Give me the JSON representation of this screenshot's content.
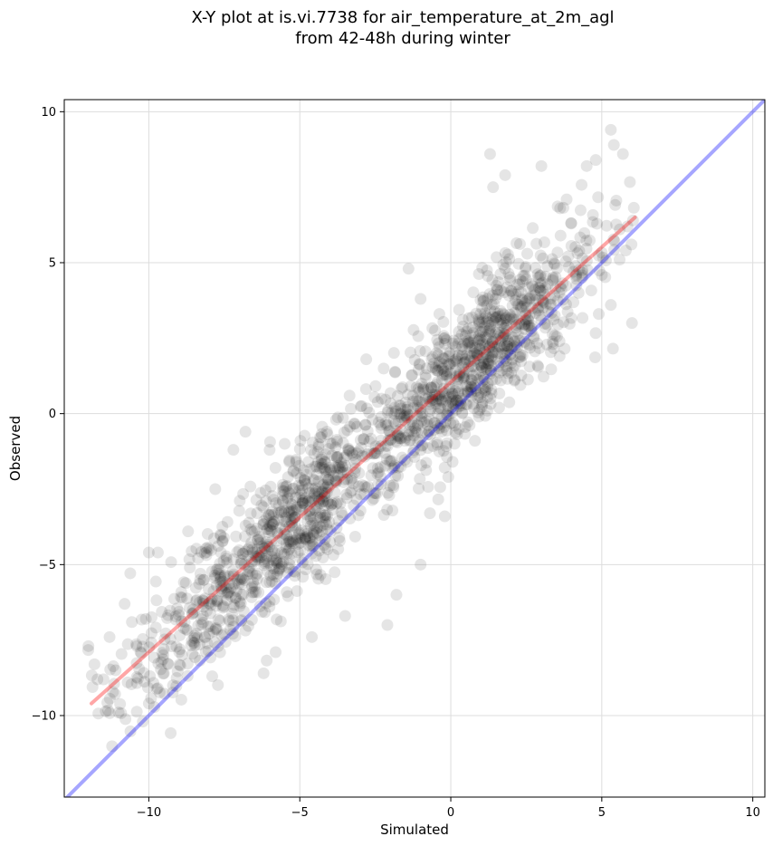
{
  "chart_data": {
    "type": "scatter",
    "title": "X-Y plot at is.vi.7738 for air_temperature_at_2m_agl\nfrom 42-48h during winter",
    "title_lines": [
      "X-Y plot at is.vi.7738 for air_temperature_at_2m_agl",
      "from 42-48h during winter"
    ],
    "xlabel": "Simulated",
    "ylabel": "Observed",
    "xlim": [
      -12.8,
      10.4
    ],
    "ylim": [
      -12.7,
      10.4
    ],
    "xticks": [
      -10,
      -5,
      0,
      5,
      10
    ],
    "yticks": [
      -10,
      -5,
      0,
      5,
      10
    ],
    "xtick_labels": [
      "−10",
      "−5",
      "0",
      "5",
      "10"
    ],
    "ytick_labels": [
      "−10",
      "−5",
      "0",
      "5",
      "10"
    ],
    "grid": true,
    "colors": {
      "points": "#000000",
      "fit_line": "#ff0000",
      "one_to_one_line": "#0000ff"
    },
    "fit_line": {
      "x": [
        -11.9,
        6.1
      ],
      "y": [
        -9.6,
        6.5
      ]
    },
    "one_to_one_line": {
      "x": [
        -12.8,
        10.4
      ],
      "y": [
        -12.8,
        10.4
      ]
    },
    "point_cloud": {
      "n": 1700,
      "seed": 7738,
      "trend": {
        "slope": 0.9,
        "intercept": 1.0
      },
      "noise_sd": 1.1,
      "clusters": [
        {
          "x_mean": -6.5,
          "x_sd": 2.6,
          "weight": 0.38
        },
        {
          "x_mean": -4.5,
          "x_sd": 1.0,
          "weight": 0.12
        },
        {
          "x_mean": 0.5,
          "x_sd": 1.6,
          "weight": 0.35
        },
        {
          "x_mean": 3.0,
          "x_sd": 1.5,
          "weight": 0.15
        }
      ],
      "x_range": [
        -12.2,
        6.1
      ]
    },
    "points": [
      {
        "x": -12.0,
        "y": -7.7
      },
      {
        "x": -11.8,
        "y": -8.3
      },
      {
        "x": -11.7,
        "y": -8.8
      },
      {
        "x": -11.5,
        "y": -8.8
      },
      {
        "x": -11.3,
        "y": -7.4
      },
      {
        "x": -11.1,
        "y": -8.5
      },
      {
        "x": -11.0,
        "y": -9.9
      },
      {
        "x": -10.8,
        "y": -6.3
      },
      {
        "x": -10.7,
        "y": -8.9
      },
      {
        "x": -10.4,
        "y": -7.7
      },
      {
        "x": -10.2,
        "y": -10.2
      },
      {
        "x": -10.0,
        "y": -9.6
      },
      {
        "x": -10.1,
        "y": -6.8
      },
      {
        "x": -10.0,
        "y": -4.6
      },
      {
        "x": -9.7,
        "y": -4.6
      },
      {
        "x": -9.5,
        "y": -8.6
      },
      {
        "x": -9.2,
        "y": -9.0
      },
      {
        "x": -8.9,
        "y": -8.0
      },
      {
        "x": -8.7,
        "y": -3.9
      },
      {
        "x": -8.3,
        "y": -5.5
      },
      {
        "x": -7.9,
        "y": -8.7
      },
      {
        "x": -7.8,
        "y": -2.5
      },
      {
        "x": -7.5,
        "y": -7.3
      },
      {
        "x": -7.2,
        "y": -1.2
      },
      {
        "x": -6.8,
        "y": -0.6
      },
      {
        "x": -6.2,
        "y": -8.6
      },
      {
        "x": -6.0,
        "y": -1.2
      },
      {
        "x": -5.8,
        "y": -7.9
      },
      {
        "x": -5.5,
        "y": -1.0
      },
      {
        "x": -4.6,
        "y": -7.4
      },
      {
        "x": -3.8,
        "y": -0.2
      },
      {
        "x": -3.5,
        "y": -6.7
      },
      {
        "x": -2.8,
        "y": 1.8
      },
      {
        "x": -2.1,
        "y": -7.0
      },
      {
        "x": -1.8,
        "y": -6.0
      },
      {
        "x": -1.4,
        "y": 4.8
      },
      {
        "x": -1.0,
        "y": -5.0
      },
      {
        "x": -1.0,
        "y": 3.8
      },
      {
        "x": -0.2,
        "y": -3.4
      },
      {
        "x": 0.8,
        "y": -0.9
      },
      {
        "x": 1.3,
        "y": 8.6
      },
      {
        "x": 1.4,
        "y": 7.5
      },
      {
        "x": 1.8,
        "y": 7.9
      },
      {
        "x": 3.0,
        "y": 8.2
      },
      {
        "x": 4.9,
        "y": 3.3
      },
      {
        "x": 5.3,
        "y": 9.4
      },
      {
        "x": 5.4,
        "y": 8.9
      },
      {
        "x": 5.3,
        "y": 3.6
      },
      {
        "x": 5.7,
        "y": 8.6
      },
      {
        "x": 6.0,
        "y": 3.0
      },
      {
        "x": 4.8,
        "y": 8.4
      },
      {
        "x": 4.5,
        "y": 8.2
      },
      {
        "x": 3.6,
        "y": 2.4
      },
      {
        "x": 2.2,
        "y": 2.2
      },
      {
        "x": 1.6,
        "y": 0.2
      }
    ]
  }
}
